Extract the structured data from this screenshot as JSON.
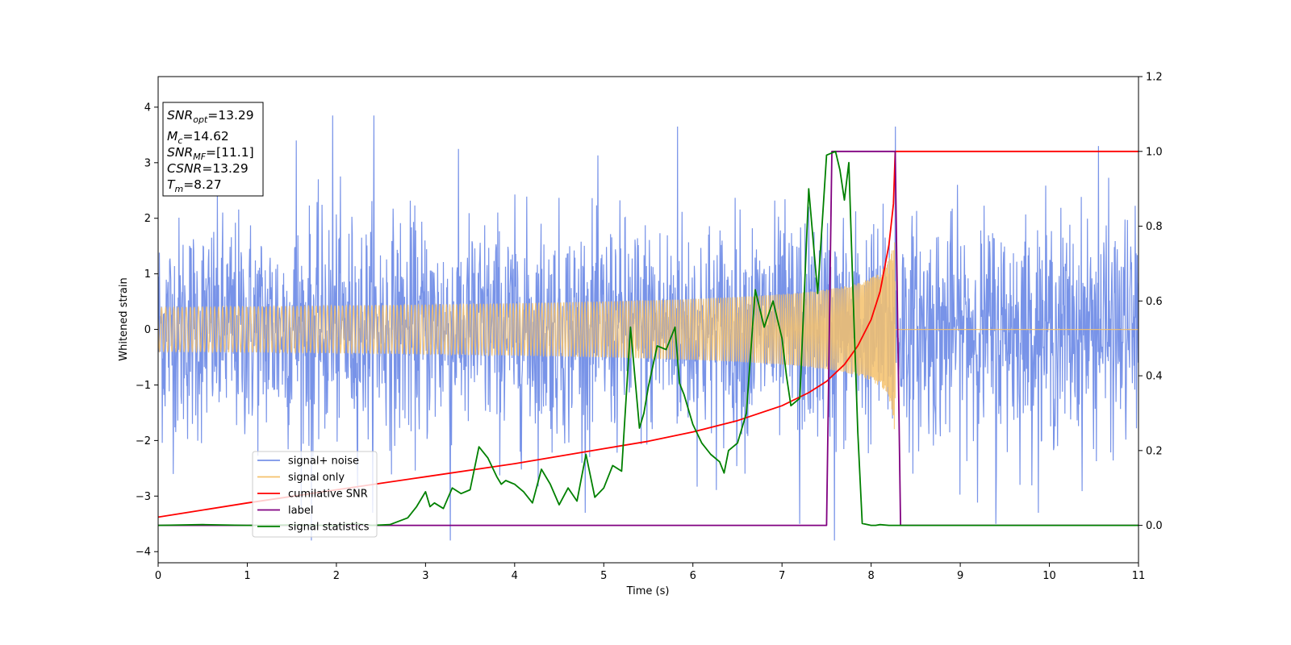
{
  "chart_data": {
    "type": "line",
    "xlabel": "Time (s)",
    "ylabel": "Whitened strain",
    "xlim": [
      0,
      11
    ],
    "ylim_left": [
      -4.2,
      4.55
    ],
    "ylim_right": [
      -0.1,
      1.2
    ],
    "x_ticks": [
      0,
      1,
      2,
      3,
      4,
      5,
      6,
      7,
      8,
      9,
      10,
      11
    ],
    "y_ticks_left": [
      -4,
      -3,
      -2,
      -1,
      0,
      1,
      2,
      3,
      4
    ],
    "y_ticks_right": [
      0.0,
      0.2,
      0.4,
      0.6,
      0.8,
      1.0,
      1.2
    ],
    "y_tick_labels_right": [
      "0.0",
      "0.2",
      "0.4",
      "0.6",
      "0.8",
      "1.0",
      "1.2"
    ],
    "grid": false,
    "legend_position": "lower-left",
    "info_box": {
      "lines": [
        {
          "base": "SNR",
          "sub": "opt",
          "value": "=13.29"
        },
        {
          "base": "M",
          "sub": "c",
          "value": "=14.62"
        },
        {
          "base": "SNR",
          "sub": "MF",
          "value": "=[11.1]"
        },
        {
          "base": "CSNR",
          "sub": "",
          "value": "=13.29"
        },
        {
          "base": "T",
          "sub": "m",
          "value": "=8.27"
        }
      ]
    },
    "series": [
      {
        "name": "signal+ noise",
        "color": "#7893e8",
        "axis": "left",
        "kind": "noise",
        "typical_abs": 1.6,
        "peak_values": [
          {
            "x": 1.55,
            "y": 3.4
          },
          {
            "x": 1.96,
            "y": 3.85
          },
          {
            "x": 2.42,
            "y": 3.85
          },
          {
            "x": 3.28,
            "y": -3.8
          },
          {
            "x": 5.83,
            "y": 3.65
          },
          {
            "x": 7.59,
            "y": -3.8
          },
          {
            "x": 8.27,
            "y": 3.65
          },
          {
            "x": 9.4,
            "y": -3.5
          },
          {
            "x": 1.72,
            "y": -3.8
          },
          {
            "x": 10.55,
            "y": 3.3
          },
          {
            "x": 7.2,
            "y": -3.5
          }
        ]
      },
      {
        "name": "signal only",
        "color": "#f5c16b",
        "axis": "left",
        "kind": "chirp",
        "merger_time": 8.27,
        "peak_amplitude": 1.3
      },
      {
        "name": "cumilative SNR",
        "color": "#ff0000",
        "axis": "right",
        "x": [
          0,
          1,
          2,
          3,
          4,
          5,
          5.5,
          6,
          6.5,
          7,
          7.3,
          7.5,
          7.7,
          7.85,
          8.0,
          8.1,
          8.2,
          8.25,
          8.27,
          11
        ],
        "y": [
          0.022,
          0.06,
          0.095,
          0.13,
          0.165,
          0.205,
          0.225,
          0.25,
          0.28,
          0.32,
          0.355,
          0.385,
          0.43,
          0.48,
          0.55,
          0.625,
          0.75,
          0.86,
          1.0,
          1.0
        ]
      },
      {
        "name": "label",
        "color": "#800080",
        "axis": "right",
        "x": [
          0,
          7.5,
          7.56,
          8.27,
          8.33,
          11
        ],
        "y": [
          0,
          0,
          1,
          1,
          0,
          0
        ]
      },
      {
        "name": "signal statistics",
        "color": "#008000",
        "axis": "right",
        "x": [
          0,
          0.5,
          1.0,
          1.5,
          2.0,
          2.2,
          2.4,
          2.6,
          2.8,
          2.9,
          3.0,
          3.05,
          3.1,
          3.2,
          3.3,
          3.4,
          3.5,
          3.6,
          3.7,
          3.8,
          3.85,
          3.9,
          4.0,
          4.1,
          4.2,
          4.3,
          4.4,
          4.5,
          4.6,
          4.7,
          4.8,
          4.9,
          5.0,
          5.1,
          5.2,
          5.3,
          5.4,
          5.45,
          5.5,
          5.6,
          5.7,
          5.8,
          5.85,
          5.9,
          6.0,
          6.1,
          6.2,
          6.3,
          6.35,
          6.4,
          6.5,
          6.6,
          6.7,
          6.8,
          6.9,
          7.0,
          7.05,
          7.1,
          7.2,
          7.3,
          7.4,
          7.5,
          7.6,
          7.65,
          7.7,
          7.75,
          7.8,
          7.85,
          7.9,
          8.0,
          8.05,
          8.1,
          8.2,
          8.3,
          8.35,
          8.5,
          9.0,
          11.0
        ],
        "y": [
          0.0,
          0.002,
          0.0,
          0.001,
          0.0,
          0.005,
          0.0,
          0.002,
          0.02,
          0.05,
          0.09,
          0.05,
          0.06,
          0.045,
          0.1,
          0.085,
          0.095,
          0.21,
          0.18,
          0.13,
          0.11,
          0.12,
          0.11,
          0.09,
          0.06,
          0.15,
          0.11,
          0.055,
          0.1,
          0.065,
          0.19,
          0.075,
          0.1,
          0.16,
          0.145,
          0.53,
          0.26,
          0.3,
          0.37,
          0.48,
          0.47,
          0.53,
          0.38,
          0.35,
          0.27,
          0.22,
          0.19,
          0.17,
          0.14,
          0.2,
          0.22,
          0.3,
          0.63,
          0.53,
          0.6,
          0.5,
          0.4,
          0.32,
          0.34,
          0.9,
          0.62,
          0.99,
          1.0,
          0.95,
          0.87,
          0.97,
          0.6,
          0.25,
          0.005,
          0.0,
          0.0,
          0.002,
          0.0,
          0.0,
          0.0,
          0.0,
          0.0,
          0.0
        ]
      }
    ]
  }
}
